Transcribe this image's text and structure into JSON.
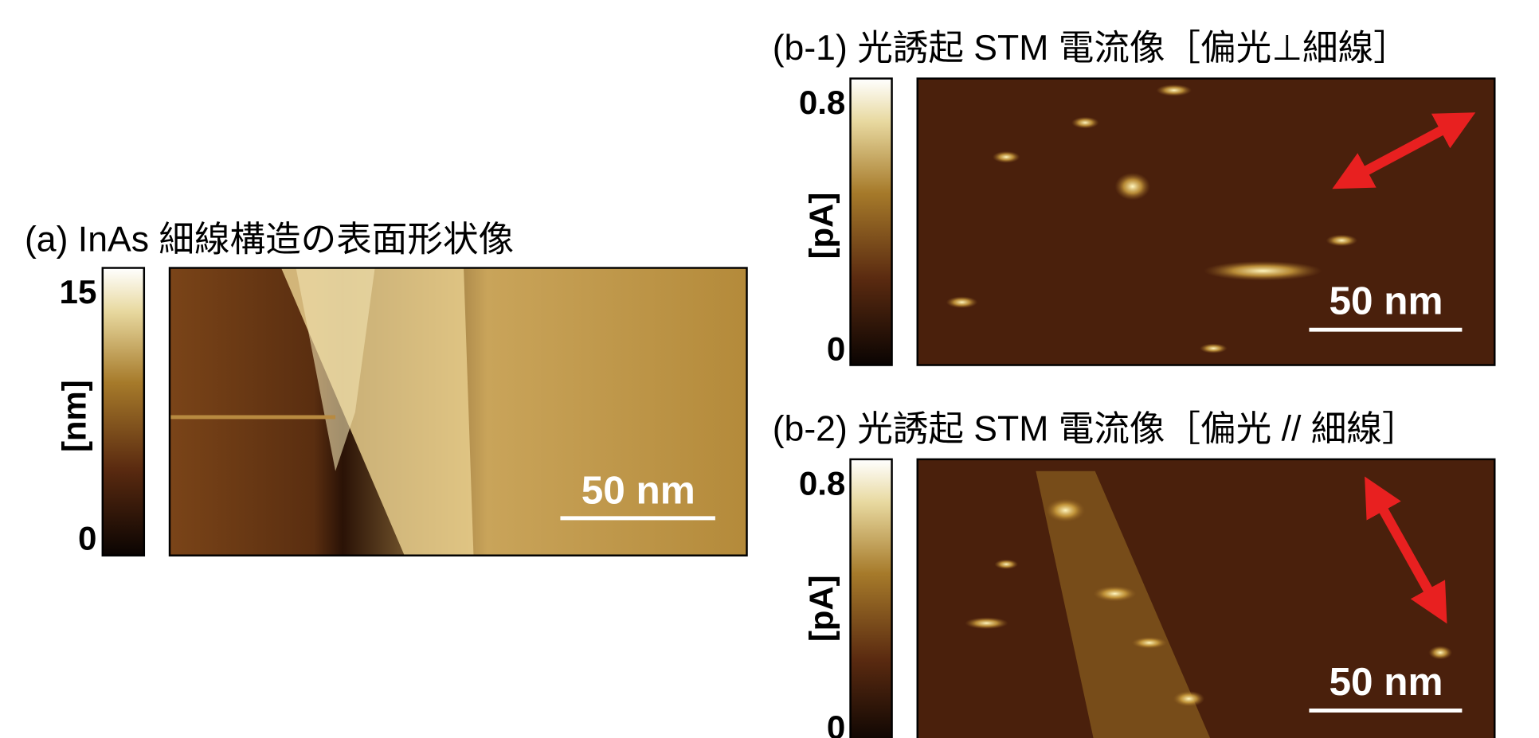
{
  "panels": [
    {
      "title": "(a) InAs 細線構造の表面形状像",
      "colorbar": {
        "max_label": "15",
        "min_label": "0",
        "unit": "[nm]"
      },
      "scale_bar": "50 nm"
    },
    {
      "title": "(b-1) 光誘起 STM 電流像［偏光⊥細線］",
      "colorbar": {
        "max_label": "0.8",
        "min_label": "0",
        "unit": "[pA]"
      },
      "scale_bar": "50 nm"
    },
    {
      "title": "(b-2) 光誘起 STM 電流像［偏光 // 細線］",
      "colorbar": {
        "max_label": "0.8",
        "min_label": "0",
        "unit": "[pA]"
      },
      "scale_bar": "50 nm"
    }
  ]
}
